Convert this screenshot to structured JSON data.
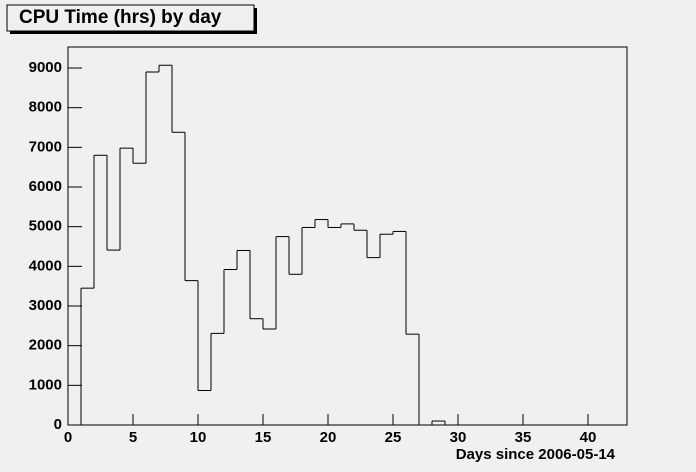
{
  "chart_data": {
    "type": "histogram",
    "title": "CPU Time (hrs) by day",
    "x_label": "Days since 2006-05-14",
    "bins": [
      0,
      1,
      2,
      3,
      4,
      5,
      6,
      7,
      8,
      9,
      10,
      11,
      12,
      13,
      14,
      15,
      16,
      17,
      18,
      19,
      20,
      21,
      22,
      23,
      24,
      25,
      26,
      27,
      28,
      29,
      30,
      31,
      32,
      33,
      34,
      35,
      36,
      37,
      38,
      39,
      40,
      41,
      42,
      43
    ],
    "values": [
      0,
      3450,
      6800,
      4410,
      6980,
      6600,
      8900,
      9070,
      7380,
      3640,
      870,
      2310,
      3920,
      4400,
      2680,
      2420,
      4750,
      3800,
      4980,
      5180,
      4980,
      5070,
      4910,
      4220,
      4810,
      4880,
      2290,
      0,
      100,
      0,
      0,
      0,
      0,
      0,
      0,
      0,
      0,
      0,
      0,
      0,
      0,
      0,
      0
    ],
    "color": "#000000",
    "xlim": [
      0,
      43
    ],
    "ylim": [
      0,
      9530
    ],
    "xticks": [
      0,
      5,
      10,
      15,
      20,
      25,
      30,
      35,
      40
    ],
    "yticks": [
      0,
      1000,
      2000,
      3000,
      4000,
      5000,
      6000,
      7000,
      8000,
      9000
    ]
  }
}
